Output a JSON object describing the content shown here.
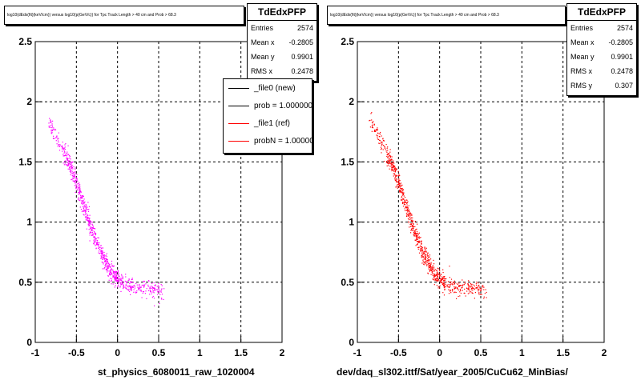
{
  "colors": {
    "pad1_points": "#ff00ff",
    "pad2_points": "#ff0000",
    "grid": "#000000",
    "legend_new": "#000000",
    "legend_ref": "#ff0000"
  },
  "chart_data": [
    {
      "type": "scatter",
      "title": "log10(dEdx(fit)(keV/cm)) versus log10(p(GeV/c)) for Tpc Track Length > 40 cm and Prob > 68.3",
      "xlabel": "st_physics_6080011_raw_1020004",
      "ylabel": "",
      "xlim": [
        -1,
        2
      ],
      "ylim": [
        0,
        2.5
      ],
      "x_ticks": [
        "-1",
        "-0.5",
        "0",
        "0.5",
        "1",
        "1.5",
        "2"
      ],
      "y_ticks": [
        "0",
        "0.5",
        "1",
        "1.5",
        "2",
        "2.5"
      ],
      "grid": true,
      "point_color": "#ff00ff",
      "band": [
        [
          -0.85,
          1.85
        ],
        [
          -0.75,
          1.72
        ],
        [
          -0.65,
          1.58
        ],
        [
          -0.55,
          1.42
        ],
        [
          -0.45,
          1.22
        ],
        [
          -0.35,
          1.0
        ],
        [
          -0.25,
          0.82
        ],
        [
          -0.15,
          0.67
        ],
        [
          -0.05,
          0.56
        ],
        [
          0.05,
          0.5
        ],
        [
          0.15,
          0.47
        ],
        [
          0.25,
          0.46
        ],
        [
          0.35,
          0.45
        ],
        [
          0.45,
          0.44
        ],
        [
          0.55,
          0.42
        ]
      ],
      "stats": {
        "title": "TdEdxPFP",
        "rows": [
          {
            "label": "Entries",
            "value": "2574"
          },
          {
            "label": "Mean x",
            "value": "-0.2805"
          },
          {
            "label": "Mean y",
            "value": "0.9901"
          },
          {
            "label": "RMS x",
            "value": "0.2478"
          }
        ]
      },
      "legend": [
        {
          "label": "_file0 (new)",
          "color": "#000000"
        },
        {
          "label": "prob = 1.000000",
          "color": "#000000"
        },
        {
          "label": "_file1 (ref)",
          "color": "#ff0000"
        },
        {
          "label": "probN = 1.000000",
          "color": "#ff0000"
        }
      ]
    },
    {
      "type": "scatter",
      "title": "log10(dEdx(fit)(keV/cm)) versus log10(p(GeV/c)) for Tpc Track Length > 40 cm and Prob > 68.3",
      "xlabel": "dev/daq_sl302.ittf/Sat/year_2005/CuCu62_MinBias/",
      "ylabel": "",
      "xlim": [
        -1,
        2
      ],
      "ylim": [
        0,
        2.5
      ],
      "x_ticks": [
        "-1",
        "-0.5",
        "0",
        "0.5",
        "1",
        "1.5",
        "2"
      ],
      "y_ticks": [
        "0",
        "0.5",
        "1",
        "1.5",
        "2",
        "2.5"
      ],
      "grid": true,
      "point_color": "#ff0000",
      "band": [
        [
          -0.85,
          1.85
        ],
        [
          -0.75,
          1.72
        ],
        [
          -0.65,
          1.58
        ],
        [
          -0.55,
          1.42
        ],
        [
          -0.45,
          1.22
        ],
        [
          -0.35,
          1.0
        ],
        [
          -0.25,
          0.82
        ],
        [
          -0.15,
          0.67
        ],
        [
          -0.05,
          0.56
        ],
        [
          0.05,
          0.5
        ],
        [
          0.15,
          0.47
        ],
        [
          0.25,
          0.46
        ],
        [
          0.35,
          0.45
        ],
        [
          0.45,
          0.44
        ],
        [
          0.55,
          0.42
        ]
      ],
      "stats": {
        "title": "TdEdxPFP",
        "rows": [
          {
            "label": "Entries",
            "value": "2574"
          },
          {
            "label": "Mean x",
            "value": "-0.2805"
          },
          {
            "label": "Mean y",
            "value": "0.9901"
          },
          {
            "label": "RMS x",
            "value": "0.2478"
          },
          {
            "label": "RMS y",
            "value": "0.307"
          }
        ]
      }
    }
  ]
}
